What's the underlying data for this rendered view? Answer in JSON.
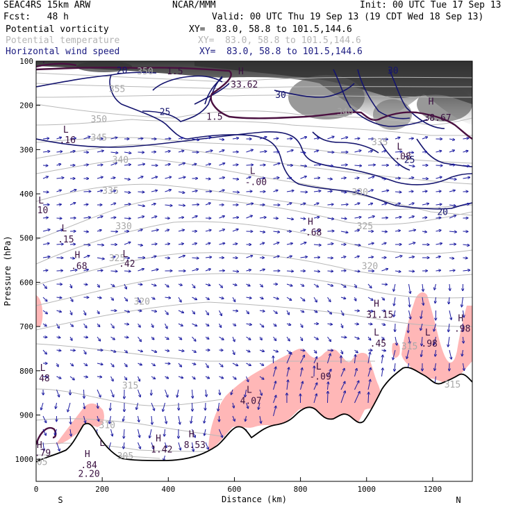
{
  "header": {
    "model": "SEAC4RS 15km ARW",
    "org": "NCAR/MMM",
    "init": "Init: 00 UTC Tue 17 Sep 13",
    "fcst": "Fcst:   48 h",
    "valid": "Valid: 00 UTC Thu 19 Sep 13 (19 CDT Wed 18 Sep 13)"
  },
  "fields": [
    {
      "name": "Potential vorticity",
      "xy": "XY=  83.0, 58.8 to 101.5,144.6",
      "color": "#000000"
    },
    {
      "name": "Potential temperature",
      "xy": "XY=  83.0, 58.8 to 101.5,144.6",
      "color": "#b0b0b0"
    },
    {
      "name": "Horizontal wind speed",
      "xy": "XY=  83.0, 58.8 to 101.5,144.6",
      "color": "#1a1a80"
    }
  ],
  "chart_data": {
    "type": "cross-section",
    "xlabel": "Distance (km)",
    "ylabel": "Pressure (hPa)",
    "xlim": [
      0,
      1320
    ],
    "ylim": [
      1050,
      100
    ],
    "x_ticks": [
      0,
      200,
      400,
      600,
      800,
      1000,
      1200
    ],
    "y_ticks": [
      100,
      200,
      300,
      400,
      500,
      600,
      700,
      800,
      900,
      1000
    ],
    "end_labels": {
      "left": "S",
      "right": "N"
    },
    "theta_labels": [
      {
        "text": "350",
        "x": 330,
        "p": 130
      },
      {
        "text": "355",
        "x": 245,
        "p": 170
      },
      {
        "text": "350",
        "x": 190,
        "p": 238
      },
      {
        "text": "345",
        "x": 190,
        "p": 280
      },
      {
        "text": "340",
        "x": 255,
        "p": 330
      },
      {
        "text": "335",
        "x": 225,
        "p": 400
      },
      {
        "text": "330",
        "x": 265,
        "p": 480
      },
      {
        "text": "325",
        "x": 245,
        "p": 552
      },
      {
        "text": "320",
        "x": 320,
        "p": 650
      },
      {
        "text": "315",
        "x": 285,
        "p": 840
      },
      {
        "text": "310",
        "x": 215,
        "p": 930
      },
      {
        "text": "305",
        "x": 270,
        "p": 1000
      },
      {
        "text": "305",
        "x": 10,
        "p": 1013
      },
      {
        "text": "335",
        "x": 1040,
        "p": 290
      },
      {
        "text": "340",
        "x": 935,
        "p": 222
      },
      {
        "text": "330",
        "x": 980,
        "p": 403
      },
      {
        "text": "325",
        "x": 995,
        "p": 480
      },
      {
        "text": "320",
        "x": 1010,
        "p": 570
      },
      {
        "text": "315",
        "x": 1130,
        "p": 752
      },
      {
        "text": "315",
        "x": 1260,
        "p": 838
      }
    ],
    "speed_labels": [
      {
        "text": "20",
        "x": 260,
        "p": 128
      },
      {
        "text": "25",
        "x": 390,
        "p": 222
      },
      {
        "text": "30",
        "x": 740,
        "p": 183
      },
      {
        "text": "30",
        "x": 1080,
        "p": 128
      },
      {
        "text": "25",
        "x": 1130,
        "p": 330
      },
      {
        "text": "20",
        "x": 1230,
        "p": 448
      }
    ],
    "pv_labels": [
      {
        "text": "4",
        "x": 20,
        "p": 105
      },
      {
        "text": "1.5",
        "x": 420,
        "p": 130
      },
      {
        "text": "1.5",
        "x": 540,
        "p": 233
      }
    ],
    "extrema": [
      {
        "text": "H",
        "x": 620,
        "p": 130
      },
      {
        "text": "33.62",
        "x": 630,
        "p": 160
      },
      {
        "text": "H",
        "x": 1195,
        "p": 198
      },
      {
        "text": "38.67",
        "x": 1215,
        "p": 235
      },
      {
        "text": "L",
        "x": 90,
        "p": 262
      },
      {
        "text": ".16",
        "x": 95,
        "p": 285
      },
      {
        "text": "L",
        "x": 1100,
        "p": 300
      },
      {
        "text": ".08",
        "x": 1110,
        "p": 322
      },
      {
        "text": "L",
        "x": 655,
        "p": 355
      },
      {
        "text": "-.00",
        "x": 665,
        "p": 380
      },
      {
        "text": "L",
        "x": 15,
        "p": 422
      },
      {
        "text": "10",
        "x": 20,
        "p": 444
      },
      {
        "text": "L",
        "x": 85,
        "p": 485
      },
      {
        "text": ".15",
        "x": 90,
        "p": 510
      },
      {
        "text": "H",
        "x": 830,
        "p": 470
      },
      {
        "text": ".68",
        "x": 840,
        "p": 494
      },
      {
        "text": "H",
        "x": 125,
        "p": 545
      },
      {
        "text": ".68",
        "x": 130,
        "p": 570
      },
      {
        "text": "L",
        "x": 270,
        "p": 543
      },
      {
        "text": ".42",
        "x": 275,
        "p": 565
      },
      {
        "text": "H",
        "x": 1030,
        "p": 655
      },
      {
        "text": "31.15",
        "x": 1040,
        "p": 680
      },
      {
        "text": "H",
        "x": 1285,
        "p": 688
      },
      {
        "text": ".98",
        "x": 1290,
        "p": 712
      },
      {
        "text": "L",
        "x": 1030,
        "p": 720
      },
      {
        "text": ".45",
        "x": 1035,
        "p": 745
      },
      {
        "text": "L",
        "x": 1185,
        "p": 720
      },
      {
        "text": ".98",
        "x": 1190,
        "p": 745
      },
      {
        "text": "L",
        "x": 855,
        "p": 797
      },
      {
        "text": "-.09",
        "x": 860,
        "p": 820
      },
      {
        "text": "L",
        "x": 20,
        "p": 800
      },
      {
        "text": "48",
        "x": 25,
        "p": 824
      },
      {
        "text": "L",
        "x": 645,
        "p": 850
      },
      {
        "text": "4.07",
        "x": 650,
        "p": 875
      },
      {
        "text": "H",
        "x": 470,
        "p": 950
      },
      {
        "text": "8.53",
        "x": 480,
        "p": 975
      },
      {
        "text": "H",
        "x": 370,
        "p": 960
      },
      {
        "text": "1.42",
        "x": 380,
        "p": 985
      },
      {
        "text": "H",
        "x": 155,
        "p": 995
      },
      {
        "text": ".84",
        "x": 160,
        "p": 1020
      },
      {
        "text": "L",
        "x": 200,
        "p": 970
      },
      {
        "text": "2.20",
        "x": 160,
        "p": 1040
      },
      {
        "text": "H",
        "x": 10,
        "p": 975
      },
      {
        "text": ".79",
        "x": 20,
        "p": 993
      }
    ],
    "pv_line_legend": "Potential vorticity",
    "pink_threshold_note": ""
  }
}
